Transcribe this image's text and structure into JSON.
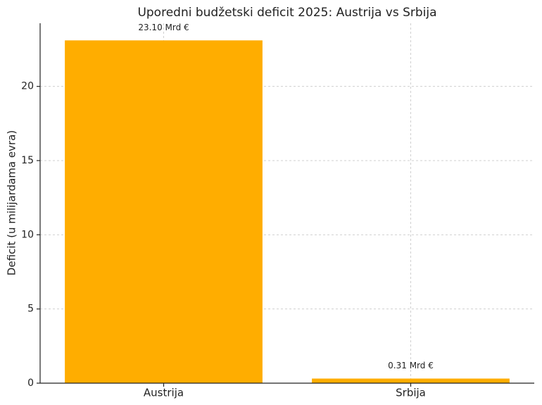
{
  "chart_data": {
    "type": "bar",
    "title": "Uporedni budžetski deficit 2025: Austrija vs Srbija",
    "y_label": "Deficit (u milijardama evra)",
    "categories": [
      "Austrija",
      "Srbija"
    ],
    "values": [
      23.1,
      0.31
    ],
    "value_labels": [
      "23.10 Mrd €",
      "0.31 Mrd €"
    ],
    "color": "#ffad00",
    "ylim": [
      0,
      24.255
    ],
    "yticks": [
      0,
      5,
      10,
      15,
      20
    ],
    "grid": true
  }
}
